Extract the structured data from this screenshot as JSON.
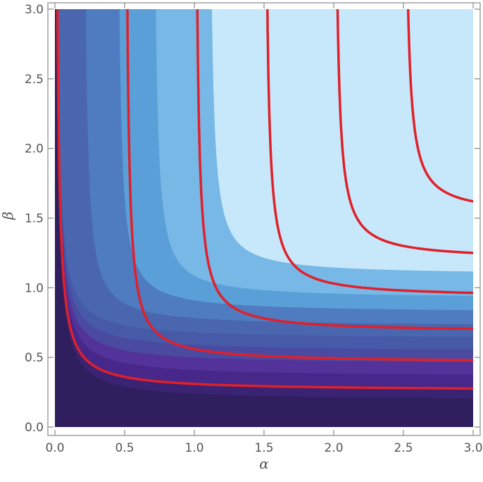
{
  "chart_data": {
    "type": "heatmap",
    "title": "",
    "xlabel": "α",
    "ylabel": "β",
    "xlim": [
      0,
      3
    ],
    "ylim": [
      0,
      3
    ],
    "x_ticks": [
      {
        "value": 0.0,
        "label": "0.0"
      },
      {
        "value": 0.5,
        "label": "0.5"
      },
      {
        "value": 1.0,
        "label": "1.0"
      },
      {
        "value": 1.5,
        "label": "1.5"
      },
      {
        "value": 2.0,
        "label": "2.0"
      },
      {
        "value": 2.5,
        "label": "2.5"
      },
      {
        "value": 3.0,
        "label": "3.0"
      }
    ],
    "y_ticks": [
      {
        "value": 0.0,
        "label": "0.0"
      },
      {
        "value": 0.5,
        "label": "0.5"
      },
      {
        "value": 1.0,
        "label": "1.0"
      },
      {
        "value": 1.5,
        "label": "1.5"
      },
      {
        "value": 2.0,
        "label": "2.0"
      },
      {
        "value": 2.5,
        "label": "2.5"
      },
      {
        "value": 3.0,
        "label": "3.0"
      }
    ],
    "grid": false,
    "filled_bands": [
      {
        "x_asymptote": 0.0,
        "y_asymptote": 0.0,
        "color": "#2f1f5e"
      },
      {
        "x_asymptote": 0.0,
        "y_asymptote": 0.19,
        "color": "#3a2373"
      },
      {
        "x_asymptote": 0.0,
        "y_asymptote": 0.27,
        "color": "#47288a"
      },
      {
        "x_asymptote": 0.0,
        "y_asymptote": 0.36,
        "color": "#533399"
      },
      {
        "x_asymptote": 0.0,
        "y_asymptote": 0.45,
        "color": "#4a4aa0"
      },
      {
        "x_asymptote": 0.0,
        "y_asymptote": 0.54,
        "color": "#475aa8"
      },
      {
        "x_asymptote": 0.0,
        "y_asymptote": 0.63,
        "color": "#4a66ae"
      },
      {
        "x_asymptote": 0.2,
        "y_asymptote": 0.72,
        "color": "#4f7cc0"
      },
      {
        "x_asymptote": 0.44,
        "y_asymptote": 0.82,
        "color": "#5a9fd8"
      },
      {
        "x_asymptote": 0.7,
        "y_asymptote": 0.92,
        "color": "#77b8e6"
      },
      {
        "x_asymptote": 1.1,
        "y_asymptote": 1.09,
        "color": "#c7e8fa"
      }
    ],
    "contour_lines": [
      {
        "x_asymptote": 0.0,
        "y_asymptote": 0.26,
        "color": "#e0202a"
      },
      {
        "x_asymptote": 0.5,
        "y_asymptote": 0.46,
        "color": "#e0202a"
      },
      {
        "x_asymptote": 1.0,
        "y_asymptote": 0.68,
        "color": "#e0202a"
      },
      {
        "x_asymptote": 1.5,
        "y_asymptote": 0.93,
        "color": "#e0202a"
      },
      {
        "x_asymptote": 2.0,
        "y_asymptote": 1.2,
        "color": "#e0202a"
      },
      {
        "x_asymptote": 2.5,
        "y_asymptote": 1.52,
        "color": "#e0202a"
      }
    ]
  }
}
